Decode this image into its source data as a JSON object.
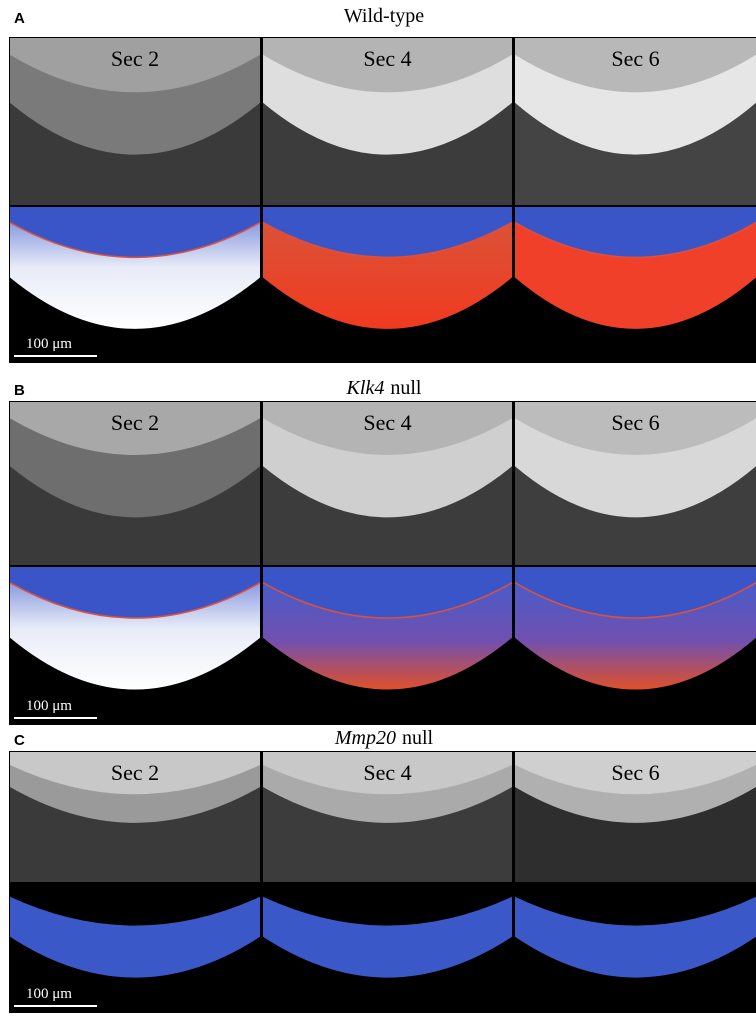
{
  "panels": [
    {
      "letter": "A",
      "title": {
        "plain": "Wild-type"
      },
      "sections": [
        "Sec 2",
        "Sec 4",
        "Sec 6"
      ],
      "scale_bar": "100 μm"
    },
    {
      "letter": "B",
      "title": {
        "italic": "Klk4",
        "plain": "null"
      },
      "sections": [
        "Sec 2",
        "Sec 4",
        "Sec 6"
      ],
      "scale_bar": "100 μm"
    },
    {
      "letter": "C",
      "title": {
        "italic": "Mmp20",
        "plain": "null"
      },
      "sections": [
        "Sec 2",
        "Sec 4",
        "Sec 6"
      ],
      "scale_bar": "100 μm"
    }
  ]
}
